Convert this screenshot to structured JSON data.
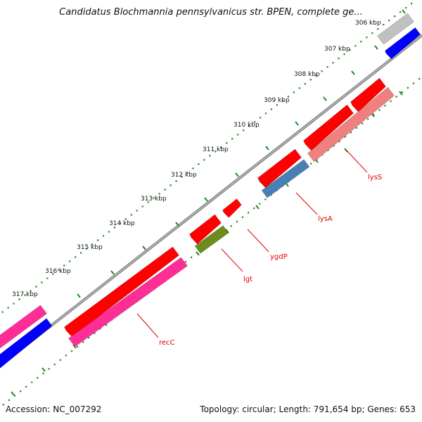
{
  "title": "Candidatus Blochmannia pennsylvanicus str. BPEN, complete ge...",
  "footer": {
    "accession": "Accession: NC_007292",
    "stats": "Topology: circular; Length: 791,654 bp; Genes: 653"
  },
  "ruler_labels": [
    "306 kbp",
    "307 kbp",
    "308 kbp",
    "309 kbp",
    "310 kbp",
    "311 kbp",
    "312 kbp",
    "313 kbp",
    "314 kbp",
    "315 kbp",
    "316 kbp",
    "317 kbp"
  ],
  "gene_labels": [
    "lysS",
    "lysA",
    "ygdP",
    "lgt",
    "recC"
  ],
  "colors": {
    "red": "#ff0000",
    "pink": "#ff2d96",
    "blue": "#0000ff",
    "steelblue": "#4a7fb5",
    "olive": "#6e8c1e",
    "salmon": "#f08080",
    "gray": "#c0c0c0",
    "backbone": "#808080",
    "tick": "#1a8c1a",
    "label": "#e00000"
  }
}
